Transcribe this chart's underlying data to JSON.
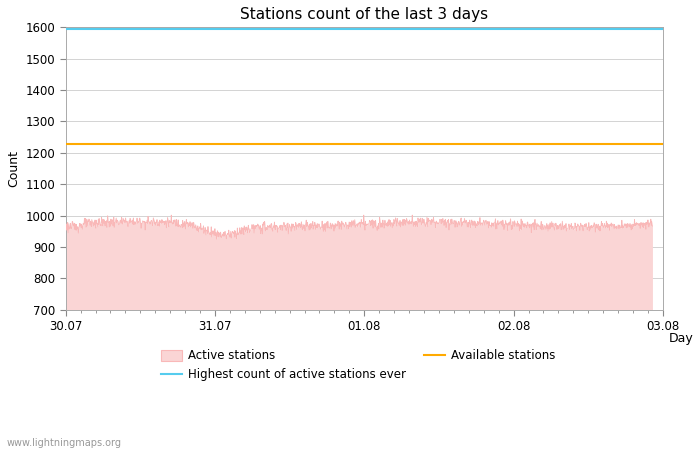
{
  "title": "Stations count of the last 3 days",
  "xlabel": "Day",
  "ylabel": "Count",
  "ylim": [
    700,
    1600
  ],
  "yticks": [
    700,
    800,
    900,
    1000,
    1100,
    1200,
    1300,
    1400,
    1500,
    1600
  ],
  "highest_ever": 1594,
  "available_stations": 1228,
  "active_mean": 972,
  "active_noise_std": 8,
  "active_line_color": "#f9b8b8",
  "active_fill_color": "#fad5d5",
  "highest_line_color": "#55ccee",
  "available_line_color": "#ffaa00",
  "x_tick_labels": [
    "30.07",
    "31.07",
    "01.08",
    "02.08",
    "03.08"
  ],
  "x_tick_positions": [
    0,
    1,
    2,
    3,
    4
  ],
  "n_points": 1440,
  "background_color": "#ffffff",
  "grid_color": "#cccccc",
  "watermark": "www.lightningmaps.org",
  "title_fontsize": 11,
  "label_fontsize": 9,
  "tick_fontsize": 8.5,
  "legend_fontsize": 8.5
}
